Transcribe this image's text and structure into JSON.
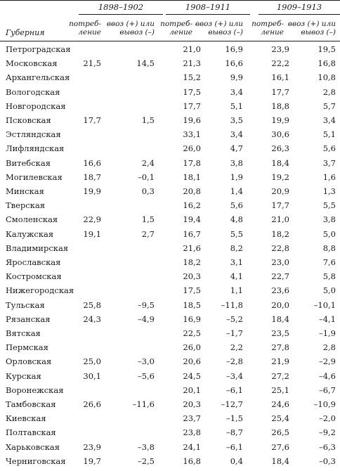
{
  "headers": {
    "gubernia": "Губерния",
    "periods": [
      "1898–1902",
      "1908–1911",
      "1909–1913"
    ],
    "consumption": [
      "потреб-",
      "ление"
    ],
    "import_export": [
      "ввоз (+) или",
      "вывоз (–)"
    ]
  },
  "rows": [
    {
      "name": "Петроградская",
      "v": [
        "",
        "",
        "21,0",
        "16,9",
        "23,9",
        "19,5"
      ]
    },
    {
      "name": "Московская",
      "v": [
        "21,5",
        "14,5",
        "21,3",
        "16,6",
        "22,2",
        "16,8"
      ]
    },
    {
      "name": "Архангельская",
      "v": [
        "",
        "",
        "15,2",
        "9,9",
        "16,1",
        "10,8"
      ]
    },
    {
      "name": "Вологодская",
      "v": [
        "",
        "",
        "17,5",
        "3,4",
        "17,7",
        "2,8"
      ]
    },
    {
      "name": "Новгородская",
      "v": [
        "",
        "",
        "17,7",
        "5,1",
        "18,8",
        "5,7"
      ]
    },
    {
      "name": "Псковская",
      "v": [
        "17,7",
        "1,5",
        "19,6",
        "3,5",
        "19,9",
        "3,4"
      ]
    },
    {
      "name": "Эстляндская",
      "v": [
        "",
        "",
        "33,1",
        "3,4",
        "30,6",
        "5,1"
      ]
    },
    {
      "name": "Лифляндская",
      "v": [
        "",
        "",
        "26,0",
        "4,7",
        "26,3",
        "5,6"
      ]
    },
    {
      "name": "Витебская",
      "v": [
        "16,6",
        "2,4",
        "17,8",
        "3,8",
        "18,4",
        "3,7"
      ]
    },
    {
      "name": "Могилевская",
      "v": [
        "18,7",
        "–0,1",
        "18,1",
        "1,9",
        "19,2",
        "1,6"
      ]
    },
    {
      "name": "Минская",
      "v": [
        "19,9",
        "0,3",
        "20,8",
        "1,4",
        "20,9",
        "1,3"
      ]
    },
    {
      "name": "Тверская",
      "v": [
        "",
        "",
        "16,2",
        "5,6",
        "17,7",
        "5,5"
      ]
    },
    {
      "name": "Смоленская",
      "v": [
        "22,9",
        "1,5",
        "19,4",
        "4,8",
        "21,0",
        "3,8"
      ]
    },
    {
      "name": "Калужская",
      "v": [
        "19,1",
        "2,7",
        "16,7",
        "5,5",
        "18,2",
        "5,0"
      ]
    },
    {
      "name": "Владимирская",
      "v": [
        "",
        "",
        "21,6",
        "8,2",
        "22,8",
        "8,8"
      ]
    },
    {
      "name": "Ярославская",
      "v": [
        "",
        "",
        "18,2",
        "3,1",
        "23,0",
        "7,6"
      ]
    },
    {
      "name": "Костромская",
      "v": [
        "",
        "",
        "20,3",
        "4,1",
        "22,7",
        "5,8"
      ]
    },
    {
      "name": "Нижегородская",
      "v": [
        "",
        "",
        "17,5",
        "1,1",
        "23,6",
        "5,0"
      ]
    },
    {
      "name": "Тульская",
      "v": [
        "25,8",
        "–9,5",
        "18,5",
        "–11,8",
        "20,0",
        "–10,1"
      ]
    },
    {
      "name": "Рязанская",
      "v": [
        "24,3",
        "–4,9",
        "16,9",
        "–5,2",
        "18,4",
        "–4,1"
      ]
    },
    {
      "name": "Вятская",
      "v": [
        "",
        "",
        "22,5",
        "–1,7",
        "23,5",
        "–1,9"
      ]
    },
    {
      "name": "Пермская",
      "v": [
        "",
        "",
        "26,0",
        "2,2",
        "27,8",
        "2,8"
      ]
    },
    {
      "name": "Орловская",
      "v": [
        "25,0",
        "–3,0",
        "20,6",
        "–2,8",
        "21,9",
        "–2,9"
      ]
    },
    {
      "name": "Курская",
      "v": [
        "30,1",
        "–5,6",
        "24,5",
        "–3,4",
        "27,2",
        "–4,6"
      ]
    },
    {
      "name": "Воронежская",
      "v": [
        "",
        "",
        "20,1",
        "–6,1",
        "25,1",
        "–6,7"
      ]
    },
    {
      "name": "Тамбовская",
      "v": [
        "26,6",
        "–11,6",
        "20,3",
        "–12,7",
        "24,6",
        "–10,9"
      ]
    },
    {
      "name": "Киевская",
      "v": [
        "",
        "",
        "23,7",
        "–1,5",
        "25,4",
        "–2,0"
      ]
    },
    {
      "name": "Полтавская",
      "v": [
        "",
        "",
        "23,8",
        "–8,7",
        "26,5",
        "–9,2"
      ]
    },
    {
      "name": "Харьковская",
      "v": [
        "23,9",
        "–3,8",
        "24,1",
        "–6,1",
        "27,6",
        "–6,3"
      ]
    },
    {
      "name": "Черниговская",
      "v": [
        "19,7",
        "–2,5",
        "16,8",
        "0,4",
        "18,4",
        "–0,3"
      ]
    }
  ]
}
